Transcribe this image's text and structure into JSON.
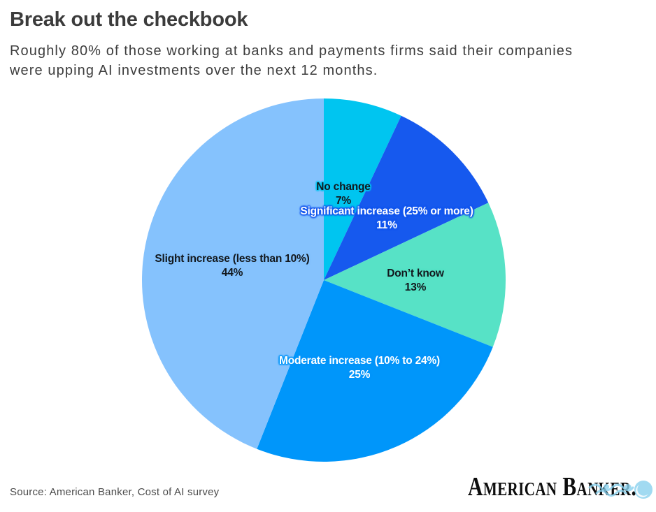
{
  "header": {
    "title": "Break out the checkbook",
    "subtitle": "Roughly 80% of those working at banks and payments firms said their companies\nwere upping AI investments over the next 12 months."
  },
  "chart_data": {
    "type": "pie",
    "title": "Break out the checkbook",
    "start_angle": "top",
    "direction": "clockwise",
    "unit": "%",
    "slices": [
      {
        "label": "No change",
        "value": 7,
        "pct_label": "7%",
        "color": "#00C5F0",
        "text_color": "#12181d"
      },
      {
        "label": "Significant increase (25% or more)",
        "value": 11,
        "pct_label": "11%",
        "color": "#1659EE",
        "text_color": "#ffffff"
      },
      {
        "label": "Don’t know",
        "value": 13,
        "pct_label": "13%",
        "color": "#57E2C6",
        "text_color": "#12181d"
      },
      {
        "label": "Moderate increase (10% to 24%)",
        "value": 25,
        "pct_label": "25%",
        "color": "#0096FA",
        "text_color": "#ffffff"
      },
      {
        "label": "Slight increase (less than 10%)",
        "value": 44,
        "pct_label": "44%",
        "color": "#85C2FD",
        "text_color": "#12181d"
      }
    ]
  },
  "footer": {
    "source": "Source: American Banker, Cost of AI survey",
    "logo_text": "American Banker."
  }
}
